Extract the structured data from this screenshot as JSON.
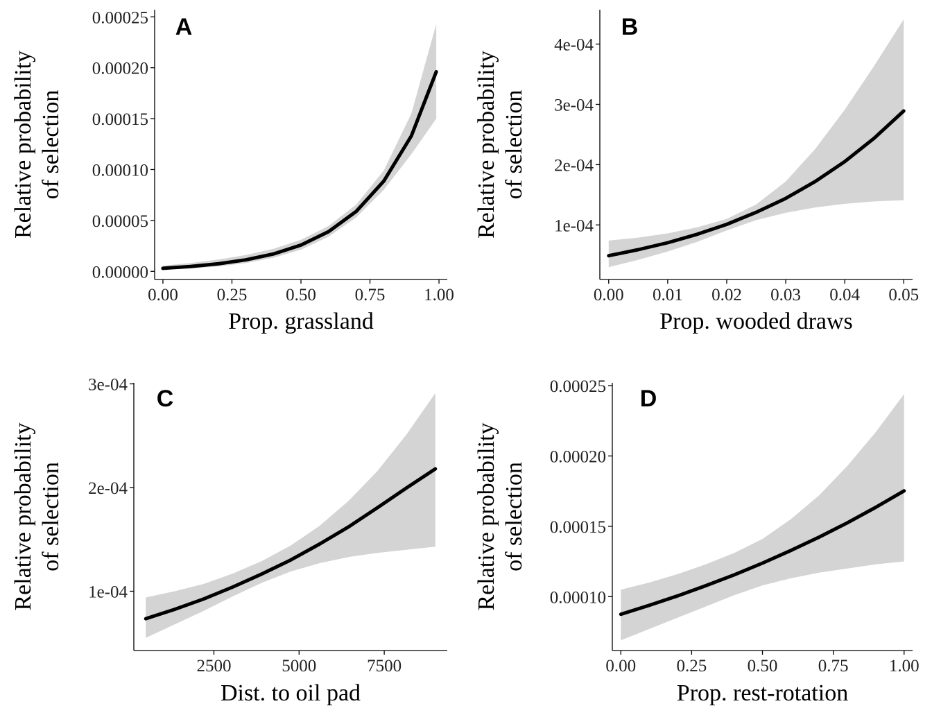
{
  "chart_data": [
    {
      "panel": "A",
      "type": "line",
      "xlabel": "Prop. grassland",
      "ylabel": [
        "Relative probability",
        "of selection"
      ],
      "xlim": [
        -0.03,
        1.03
      ],
      "ylim": [
        -8e-06,
        0.000257
      ],
      "xticks": [
        0,
        0.25,
        0.5,
        0.75,
        1.0
      ],
      "xtick_labels": [
        "0.00",
        "0.25",
        "0.50",
        "0.75",
        "1.00"
      ],
      "yticks": [
        0,
        5e-05,
        0.0001,
        0.00015,
        0.0002,
        0.00025
      ],
      "ytick_labels": [
        "0.00000",
        "0.00005",
        "0.00010",
        "0.00015",
        "0.00020",
        "0.00025"
      ],
      "series": [
        {
          "x": [
            0,
            0.1,
            0.2,
            0.3,
            0.4,
            0.5,
            0.6,
            0.7,
            0.8,
            0.9,
            0.99
          ],
          "y": [
            3e-06,
            4.8e-06,
            7.4e-06,
            1.13e-05,
            1.71e-05,
            2.58e-05,
            3.9e-05,
            5.88e-05,
            8.86e-05,
            0.000133,
            0.000196
          ],
          "lower": [
            1.5e-06,
            2.8e-06,
            4.8e-06,
            8.1e-06,
            1.33e-05,
            2.13e-05,
            3.4e-05,
            5.3e-05,
            8e-05,
            0.000115,
            0.00015
          ],
          "upper": [
            5.5e-06,
            8.2e-06,
            1.16e-05,
            1.6e-05,
            2.22e-05,
            3.1e-05,
            4.45e-05,
            6.55e-05,
            9.9e-05,
            0.000155,
            0.000243
          ]
        }
      ]
    },
    {
      "panel": "B",
      "type": "line",
      "xlabel": "Prop. wooded draws",
      "ylabel": [
        "Relative probability",
        "of selection"
      ],
      "xlim": [
        -0.0015,
        0.0515
      ],
      "ylim": [
        9.5e-06,
        0.000457
      ],
      "xticks": [
        0,
        0.01,
        0.02,
        0.03,
        0.04,
        0.05
      ],
      "xtick_labels": [
        "0.00",
        "0.01",
        "0.02",
        "0.03",
        "0.04",
        "0.05"
      ],
      "yticks": [
        0.0001,
        0.0002,
        0.0003,
        0.0004
      ],
      "ytick_labels": [
        "1e-04",
        "2e-04",
        "3e-04",
        "4e-04"
      ],
      "series": [
        {
          "x": [
            0,
            0.005,
            0.01,
            0.015,
            0.02,
            0.025,
            0.03,
            0.035,
            0.04,
            0.045,
            0.05
          ],
          "y": [
            4.9e-05,
            5.9e-05,
            7.05e-05,
            8.45e-05,
            0.000101,
            0.000121,
            0.000144,
            0.000172,
            0.000205,
            0.000244,
            0.000289
          ],
          "lower": [
            3e-05,
            4.2e-05,
            5.6e-05,
            7.2e-05,
            9.1e-05,
            0.000108,
            0.00012,
            0.000129,
            0.000135,
            0.000139,
            0.000141
          ],
          "upper": [
            7.4e-05,
            7.9e-05,
            8.6e-05,
            9.6e-05,
            0.00011,
            0.000134,
            0.000172,
            0.000226,
            0.000291,
            0.000364,
            0.000441
          ]
        }
      ]
    },
    {
      "panel": "C",
      "type": "line",
      "xlabel": "Dist. to oil pad",
      "ylabel": [
        "Relative probability",
        "of selection"
      ],
      "xlim": [
        150,
        9350
      ],
      "ylim": [
        4.28e-05,
        0.000301
      ],
      "xticks": [
        2500,
        5000,
        7500
      ],
      "xtick_labels": [
        "2500",
        "5000",
        "7500"
      ],
      "yticks": [
        0.0001,
        0.0002,
        0.0003
      ],
      "ytick_labels": [
        "1e-04",
        "2e-04",
        "3e-04"
      ],
      "series": [
        {
          "x": [
            500,
            1350,
            2200,
            3050,
            3900,
            4750,
            5600,
            6450,
            7300,
            8150,
            9000
          ],
          "y": [
            7.35e-05,
            8.25e-05,
            9.25e-05,
            0.000104,
            0.0001165,
            0.00013,
            0.0001455,
            0.000162,
            0.0001805,
            0.0001995,
            0.000218
          ],
          "lower": [
            5.5e-05,
            6.8e-05,
            8.1e-05,
            9.5e-05,
            0.000108,
            0.000119,
            0.000127,
            0.000133,
            0.000137,
            0.00014,
            0.000143
          ],
          "upper": [
            9.4e-05,
            0.0001,
            0.000107,
            0.000117,
            0.000129,
            0.000144,
            0.000163,
            0.000187,
            0.000216,
            0.000251,
            0.000291
          ]
        }
      ]
    },
    {
      "panel": "D",
      "type": "line",
      "xlabel": "Prop. rest-rotation",
      "ylabel": [
        "Relative probability",
        "of selection"
      ],
      "xlim": [
        -0.03,
        1.03
      ],
      "ylim": [
        6.17e-05,
        0.000252
      ],
      "xticks": [
        0,
        0.25,
        0.5,
        0.75,
        1.0
      ],
      "xtick_labels": [
        "0.00",
        "0.25",
        "0.50",
        "0.75",
        "1.00"
      ],
      "yticks": [
        0.0001,
        0.00015,
        0.0002,
        0.00025
      ],
      "ytick_labels": [
        "0.00010",
        "0.00015",
        "0.00020",
        "0.00025"
      ],
      "series": [
        {
          "x": [
            0,
            0.1,
            0.2,
            0.3,
            0.4,
            0.5,
            0.6,
            0.7,
            0.8,
            0.9,
            1.0
          ],
          "y": [
            8.75e-05,
            9.38e-05,
            0.0001005,
            0.0001078,
            0.0001155,
            0.0001238,
            0.0001328,
            0.0001423,
            0.0001525,
            0.0001635,
            0.0001752
          ],
          "lower": [
            6.9e-05,
            7.7e-05,
            8.5e-05,
            9.3e-05,
            0.000101,
            0.000108,
            0.000113,
            0.000117,
            0.00012,
            0.000123,
            0.000125
          ],
          "upper": [
            0.000105,
            0.00011,
            0.000116,
            0.000123,
            0.000131,
            0.000141,
            0.000155,
            0.000172,
            0.000193,
            0.000217,
            0.000244
          ]
        }
      ]
    }
  ]
}
